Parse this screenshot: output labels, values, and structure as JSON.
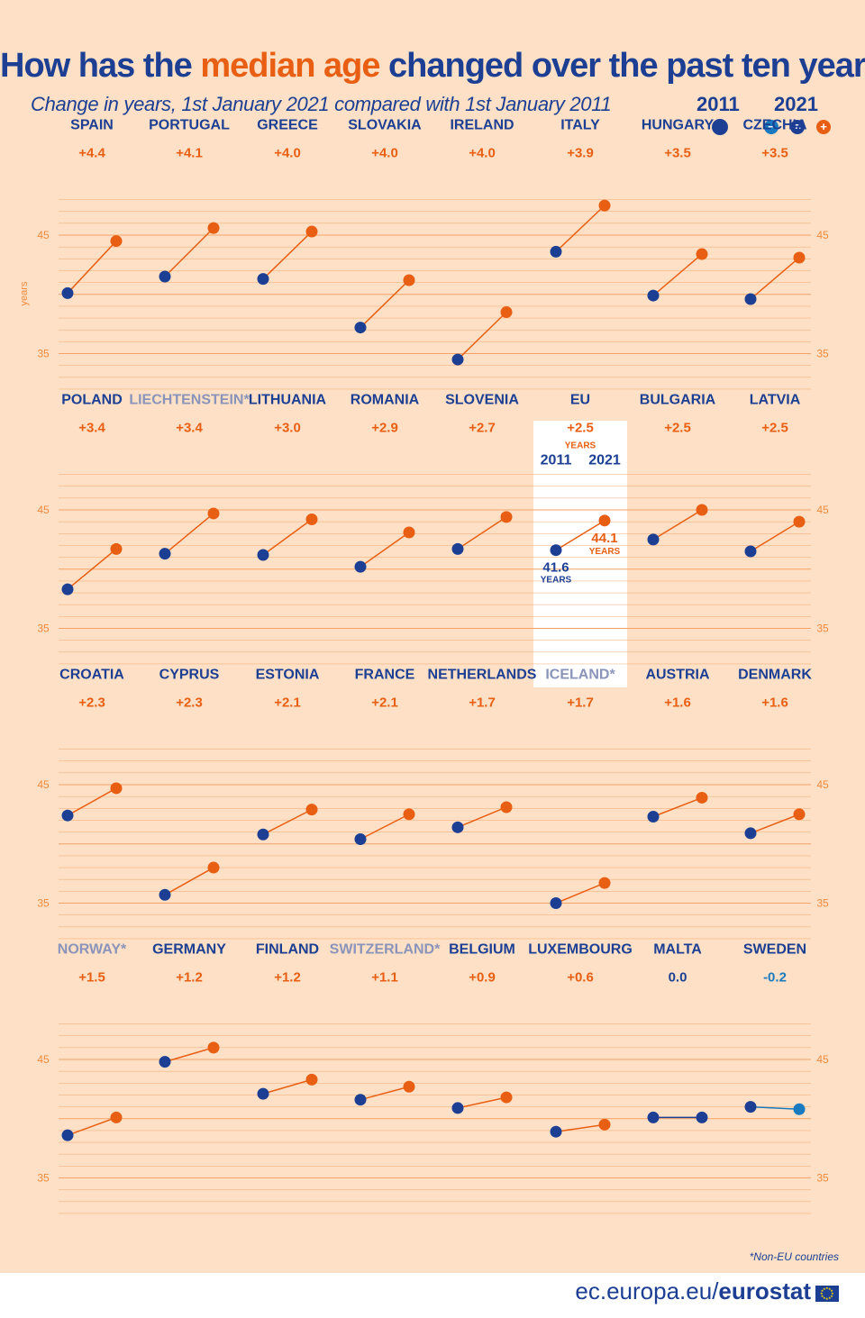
{
  "title": {
    "part1": "How has the ",
    "highlight": "median age",
    "part2": " changed over the past ten years?"
  },
  "subtitle": "Change in years, 1st January 2021 compared with 1st January 2011",
  "legend": {
    "year_2011": "2011",
    "year_2021": "2021",
    "minus_symbol": "−",
    "equal_symbol": "=",
    "plus_symbol": "+"
  },
  "colors": {
    "blue_2011": "#1c3f94",
    "orange_increase": "#e85f13",
    "lightblue_decrease": "#1a7abf",
    "background": "#fde0c5",
    "gridline": "#f3a366"
  },
  "eu_annotation": {
    "change_unit": "YEARS",
    "year_2011": "2011",
    "year_2021": "2021",
    "value_2011": "41.6",
    "value_2021": "44.1",
    "unit": "YEARS"
  },
  "footnote": "*Non-EU countries",
  "footer": {
    "domain": "ec.europa.eu/",
    "brand": "eurostat"
  },
  "chart_data": {
    "type": "slope",
    "ylabel": "years",
    "ylim": [
      32,
      48
    ],
    "yticks": [
      35,
      45
    ],
    "grid": true,
    "series_years": [
      "2011",
      "2021"
    ],
    "countries": [
      {
        "name": "SPAIN",
        "change": "+4.4",
        "v2011": 40.1,
        "v2021": 44.5
      },
      {
        "name": "PORTUGAL",
        "change": "+4.1",
        "v2011": 41.5,
        "v2021": 45.6
      },
      {
        "name": "GREECE",
        "change": "+4.0",
        "v2011": 41.3,
        "v2021": 45.3
      },
      {
        "name": "SLOVAKIA",
        "change": "+4.0",
        "v2011": 37.2,
        "v2021": 41.2
      },
      {
        "name": "IRELAND",
        "change": "+4.0",
        "v2011": 34.5,
        "v2021": 38.5
      },
      {
        "name": "ITALY",
        "change": "+3.9",
        "v2011": 43.6,
        "v2021": 47.5
      },
      {
        "name": "HUNGARY",
        "change": "+3.5",
        "v2011": 39.9,
        "v2021": 43.4
      },
      {
        "name": "CZECHIA",
        "change": "+3.5",
        "v2011": 39.6,
        "v2021": 43.1
      },
      {
        "name": "POLAND",
        "change": "+3.4",
        "v2011": 38.3,
        "v2021": 41.7
      },
      {
        "name": "LIECHTENSTEIN*",
        "change": "+3.4",
        "non_eu": true,
        "v2011": 41.3,
        "v2021": 44.7
      },
      {
        "name": "LITHUANIA",
        "change": "+3.0",
        "v2011": 41.2,
        "v2021": 44.2
      },
      {
        "name": "ROMANIA",
        "change": "+2.9",
        "v2011": 40.2,
        "v2021": 43.1
      },
      {
        "name": "SLOVENIA",
        "change": "+2.7",
        "v2011": 41.7,
        "v2021": 44.4
      },
      {
        "name": "EU",
        "change": "+2.5",
        "is_eu": true,
        "v2011": 41.6,
        "v2021": 44.1
      },
      {
        "name": "BULGARIA",
        "change": "+2.5",
        "v2011": 42.5,
        "v2021": 45.0
      },
      {
        "name": "LATVIA",
        "change": "+2.5",
        "v2011": 41.5,
        "v2021": 44.0
      },
      {
        "name": "CROATIA",
        "change": "+2.3",
        "v2011": 42.4,
        "v2021": 44.7
      },
      {
        "name": "CYPRUS",
        "change": "+2.3",
        "v2011": 35.7,
        "v2021": 38.0
      },
      {
        "name": "ESTONIA",
        "change": "+2.1",
        "v2011": 40.8,
        "v2021": 42.9
      },
      {
        "name": "FRANCE",
        "change": "+2.1",
        "v2011": 40.4,
        "v2021": 42.5
      },
      {
        "name": "NETHERLANDS",
        "change": "+1.7",
        "v2011": 41.4,
        "v2021": 43.1
      },
      {
        "name": "ICELAND*",
        "change": "+1.7",
        "non_eu": true,
        "v2011": 35.0,
        "v2021": 36.7
      },
      {
        "name": "AUSTRIA",
        "change": "+1.6",
        "v2011": 42.3,
        "v2021": 43.9
      },
      {
        "name": "DENMARK",
        "change": "+1.6",
        "v2011": 40.9,
        "v2021": 42.5
      },
      {
        "name": "NORWAY*",
        "change": "+1.5",
        "non_eu": true,
        "v2011": 38.6,
        "v2021": 40.1
      },
      {
        "name": "GERMANY",
        "change": "+1.2",
        "v2011": 44.8,
        "v2021": 46.0
      },
      {
        "name": "FINLAND",
        "change": "+1.2",
        "v2011": 42.1,
        "v2021": 43.3
      },
      {
        "name": "SWITZERLAND*",
        "change": "+1.1",
        "non_eu": true,
        "v2011": 41.6,
        "v2021": 42.7
      },
      {
        "name": "BELGIUM",
        "change": "+0.9",
        "v2011": 40.9,
        "v2021": 41.8
      },
      {
        "name": "LUXEMBOURG",
        "change": "+0.6",
        "v2011": 38.9,
        "v2021": 39.5
      },
      {
        "name": "MALTA",
        "change": "0.0",
        "v2011": 40.1,
        "v2021": 40.1
      },
      {
        "name": "SWEDEN",
        "change": "-0.2",
        "v2011": 41.0,
        "v2021": 40.8
      }
    ]
  }
}
